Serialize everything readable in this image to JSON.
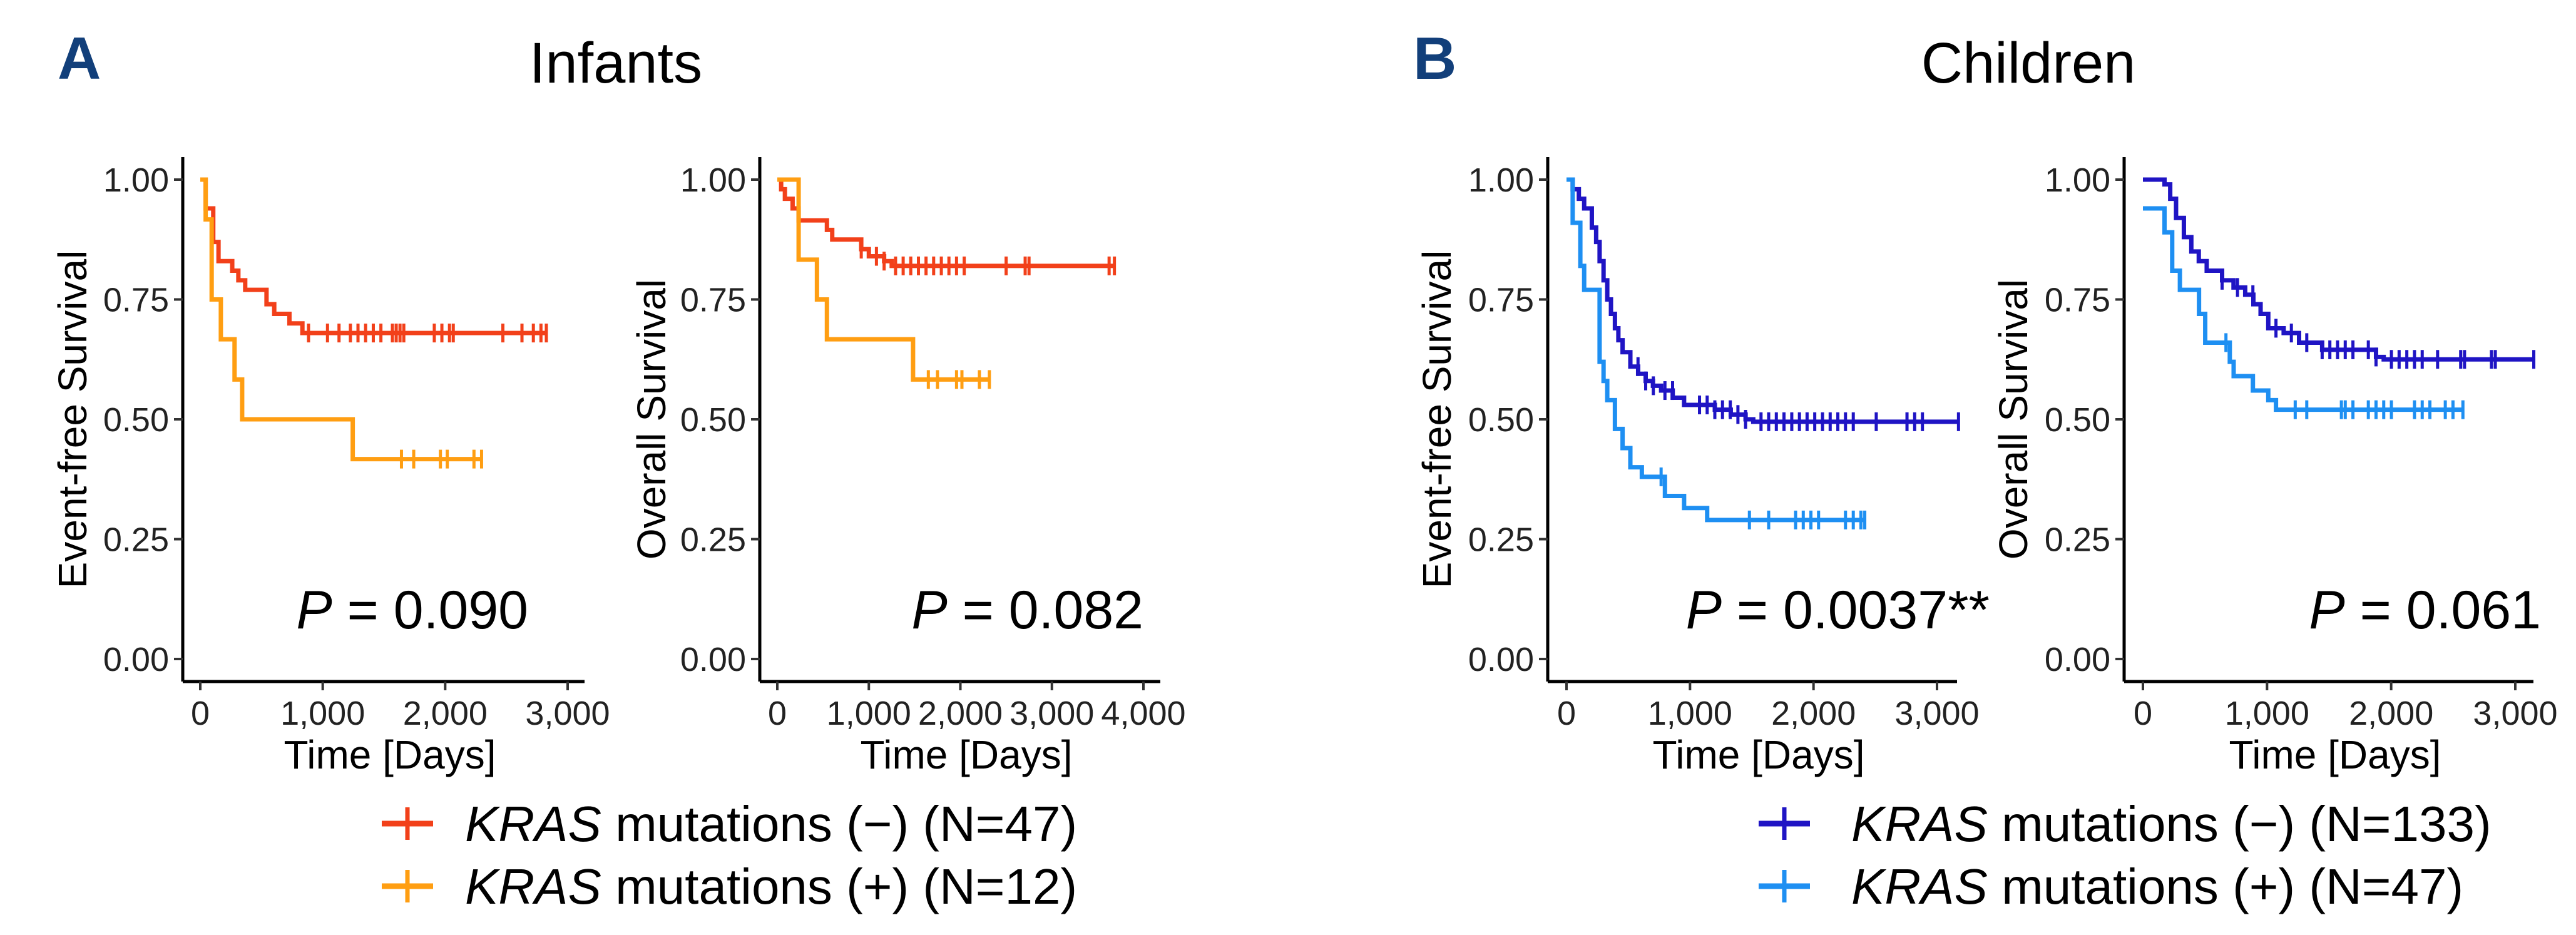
{
  "panels": [
    {
      "letter": "A",
      "title": "Infants"
    },
    {
      "letter": "B",
      "title": "Children"
    }
  ],
  "legends": [
    {
      "items": [
        {
          "kras": "KRAS",
          "rest": " mutations (−) (N=47)",
          "color": "#f2401a"
        },
        {
          "kras": "KRAS",
          "rest": " mutations (+) (N=12)",
          "color": "#ff9e12"
        }
      ]
    },
    {
      "items": [
        {
          "kras": "KRAS",
          "rest": " mutations (−) (N=133)",
          "color": "#1f14c4"
        },
        {
          "kras": "KRAS",
          "rest": " mutations (+) (N=47)",
          "color": "#1e8ff2"
        }
      ]
    }
  ],
  "chart_data": [
    {
      "type": "line",
      "group": "Infants",
      "xlabel": "Time [Days]",
      "ylabel": "Event-free Survival",
      "xlim": [
        0,
        3000
      ],
      "ylim": [
        0,
        1
      ],
      "xticks": [
        "0",
        "1,000",
        "2,000",
        "3,000"
      ],
      "xtick_values": [
        0,
        1000,
        2000,
        3000
      ],
      "yticks": [
        "0.00",
        "0.25",
        "0.50",
        "0.75",
        "1.00"
      ],
      "ytick_values": [
        0,
        0.25,
        0.5,
        0.75,
        1
      ],
      "annotation": {
        "p": "P",
        "rest": " = 0.090"
      },
      "series": [
        {
          "name": "KRAS mutations (−) (N=47)",
          "color": "#f2401a",
          "steps": [
            [
              0,
              1
            ],
            [
              44,
              0.94
            ],
            [
              106,
              0.87
            ],
            [
              149,
              0.83
            ],
            [
              261,
              0.81
            ],
            [
              311,
              0.79
            ],
            [
              367,
              0.77
            ],
            [
              541,
              0.74
            ],
            [
              604,
              0.72
            ],
            [
              728,
              0.7
            ],
            [
              834,
              0.68
            ]
          ],
          "end": 2826,
          "censor": [
            884,
            1039,
            1133,
            1226,
            1288,
            1350,
            1413,
            1475,
            1569,
            1600,
            1631,
            1662,
            1911,
            1973,
            2035,
            2066,
            2471,
            2627,
            2720,
            2782
          ]
        },
        {
          "name": "KRAS mutations (+) (N=12)",
          "color": "#ff9e12",
          "steps": [
            [
              0,
              1
            ],
            [
              44,
              0.917
            ],
            [
              93,
              0.75
            ],
            [
              168,
              0.667
            ],
            [
              280,
              0.583
            ],
            [
              342,
              0.5
            ],
            [
              1245,
              0.417
            ]
          ],
          "end": 2297,
          "censor": [
            1643,
            1743,
            1961,
            2017,
            2235
          ]
        }
      ]
    },
    {
      "type": "line",
      "group": "Infants",
      "xlabel": "Time [Days]",
      "ylabel": "Overall Survival",
      "xlim": [
        0,
        4000
      ],
      "ylim": [
        0,
        1
      ],
      "xticks": [
        "0",
        "1,000",
        "2,000",
        "3,000",
        "4,000"
      ],
      "xtick_values": [
        0,
        1000,
        2000,
        3000,
        4000
      ],
      "yticks": [
        "0.00",
        "0.25",
        "0.50",
        "0.75",
        "1.00"
      ],
      "ytick_values": [
        0,
        0.25,
        0.5,
        0.75,
        1
      ],
      "annotation": {
        "p": "P",
        "rest": " = 0.082"
      },
      "series": [
        {
          "name": "KRAS mutations (−) (N=47)",
          "color": "#f2401a",
          "steps": [
            [
              0,
              1
            ],
            [
              42,
              0.98
            ],
            [
              83,
              0.96
            ],
            [
              167,
              0.94
            ],
            [
              233,
              0.915
            ],
            [
              542,
              0.895
            ],
            [
              600,
              0.875
            ],
            [
              917,
              0.855
            ],
            [
              1000,
              0.84
            ],
            [
              1167,
              0.83
            ],
            [
              1250,
              0.82
            ]
          ],
          "end": 3683,
          "censor": [
            917,
            1083,
            1167,
            1292,
            1375,
            1458,
            1542,
            1625,
            1708,
            1792,
            1875,
            1958,
            2042,
            2500,
            2708,
            2750,
            3625
          ]
        },
        {
          "name": "KRAS mutations (+) (N=12)",
          "color": "#ff9e12",
          "steps": [
            [
              0,
              1
            ],
            [
              233,
              0.833
            ],
            [
              433,
              0.75
            ],
            [
              542,
              0.667
            ],
            [
              1483,
              0.583
            ]
          ],
          "end": 2317,
          "censor": [
            1650,
            1750,
            1958,
            2017,
            2208
          ]
        }
      ]
    },
    {
      "type": "line",
      "group": "Children",
      "xlabel": "Time [Days]",
      "ylabel": "Event-free Survival",
      "xlim": [
        0,
        3000
      ],
      "ylim": [
        0,
        1
      ],
      "xticks": [
        "0",
        "1,000",
        "2,000",
        "3,000"
      ],
      "xtick_values": [
        0,
        1000,
        2000,
        3000
      ],
      "yticks": [
        "0.00",
        "0.25",
        "0.50",
        "0.75",
        "1.00"
      ],
      "ytick_values": [
        0,
        0.25,
        0.5,
        0.75,
        1
      ],
      "annotation": {
        "p": "P",
        "rest": " = 0.0037**"
      },
      "series": [
        {
          "name": "KRAS mutations (−) (N=133)",
          "color": "#1f14c4",
          "steps": [
            [
              0,
              1
            ],
            [
              50,
              0.98
            ],
            [
              100,
              0.96
            ],
            [
              143,
              0.94
            ],
            [
              205,
              0.9
            ],
            [
              240,
              0.87
            ],
            [
              268,
              0.83
            ],
            [
              300,
              0.79
            ],
            [
              330,
              0.75
            ],
            [
              360,
              0.72
            ],
            [
              392,
              0.69
            ],
            [
              420,
              0.665
            ],
            [
              454,
              0.64
            ],
            [
              517,
              0.61
            ],
            [
              580,
              0.595
            ],
            [
              641,
              0.58
            ],
            [
              700,
              0.57
            ],
            [
              766,
              0.56
            ],
            [
              860,
              0.545
            ],
            [
              952,
              0.53
            ],
            [
              1201,
              0.52
            ],
            [
              1330,
              0.51
            ],
            [
              1450,
              0.5
            ],
            [
              1512,
              0.495
            ]
          ],
          "end": 3174,
          "censor": [
            579,
            641,
            703,
            797,
            859,
            1077,
            1139,
            1201,
            1263,
            1326,
            1388,
            1450,
            1575,
            1637,
            1699,
            1761,
            1824,
            1886,
            1948,
            2010,
            2073,
            2135,
            2197,
            2259,
            2322,
            2508,
            2757,
            2819,
            2882
          ]
        },
        {
          "name": "KRAS mutations (+) (N=47)",
          "color": "#1e8ff2",
          "steps": [
            [
              0,
              1
            ],
            [
              50,
              0.91
            ],
            [
              112,
              0.82
            ],
            [
              143,
              0.77
            ],
            [
              268,
              0.62
            ],
            [
              300,
              0.58
            ],
            [
              330,
              0.54
            ],
            [
              392,
              0.48
            ],
            [
              454,
              0.44
            ],
            [
              517,
              0.4
            ],
            [
              610,
              0.38
            ],
            [
              797,
              0.34
            ],
            [
              952,
              0.315
            ],
            [
              1139,
              0.29
            ]
          ],
          "end": 2415,
          "censor": [
            766,
            1481,
            1637,
            1855,
            1917,
            1979,
            2041,
            2259,
            2322,
            2384
          ]
        }
      ]
    },
    {
      "type": "line",
      "group": "Children",
      "xlabel": "Time [Days]",
      "ylabel": "Overall Survival",
      "xlim": [
        0,
        3000
      ],
      "ylim": [
        0,
        1
      ],
      "xticks": [
        "0",
        "1,000",
        "2,000",
        "3,000"
      ],
      "xtick_values": [
        0,
        1000,
        2000,
        3000
      ],
      "yticks": [
        "0.00",
        "0.25",
        "0.50",
        "0.75",
        "1.00"
      ],
      "ytick_values": [
        0,
        0.25,
        0.5,
        0.75,
        1
      ],
      "annotation": {
        "p": "P",
        "rest": " = 0.061"
      },
      "series": [
        {
          "name": "KRAS mutations (−) (N=133)",
          "color": "#1f14c4",
          "steps": [
            [
              0,
              1
            ],
            [
              174,
              0.99
            ],
            [
              220,
              0.96
            ],
            [
              267,
              0.92
            ],
            [
              330,
              0.88
            ],
            [
              390,
              0.85
            ],
            [
              450,
              0.83
            ],
            [
              514,
              0.81
            ],
            [
              638,
              0.79
            ],
            [
              730,
              0.775
            ],
            [
              824,
              0.76
            ],
            [
              890,
              0.74
            ],
            [
              948,
              0.72
            ],
            [
              1010,
              0.69
            ],
            [
              1134,
              0.68
            ],
            [
              1258,
              0.66
            ],
            [
              1444,
              0.645
            ],
            [
              1878,
              0.63
            ],
            [
              1940,
              0.625
            ]
          ],
          "end": 3149,
          "censor": [
            638,
            762,
            886,
            1072,
            1196,
            1320,
            1444,
            1506,
            1568,
            1630,
            1692,
            1816,
            1878,
            2002,
            2064,
            2126,
            2188,
            2250,
            2374,
            2560,
            2591,
            2808,
            2839
          ]
        },
        {
          "name": "KRAS mutations (+) (N=47)",
          "color": "#1e8ff2",
          "steps": [
            [
              0,
              0.94
            ],
            [
              174,
              0.89
            ],
            [
              236,
              0.81
            ],
            [
              298,
              0.77
            ],
            [
              452,
              0.72
            ],
            [
              502,
              0.66
            ],
            [
              700,
              0.62
            ],
            [
              731,
              0.59
            ],
            [
              886,
              0.56
            ],
            [
              1010,
              0.54
            ],
            [
              1072,
              0.52
            ]
          ],
          "end": 2578,
          "censor": [
            669,
            1227,
            1320,
            1599,
            1630,
            1692,
            1816,
            1878,
            1940,
            2002,
            2188,
            2250,
            2312,
            2436,
            2498
          ]
        }
      ]
    }
  ]
}
